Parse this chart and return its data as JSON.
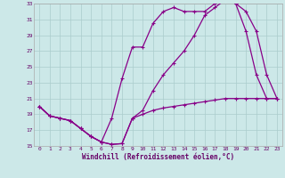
{
  "bg_color": "#cce8e8",
  "line_color": "#880088",
  "grid_color": "#aacccc",
  "xlabel": "Windchill (Refroidissement éolien,°C)",
  "xlim": [
    -0.5,
    23.5
  ],
  "ylim": [
    15,
    33
  ],
  "yticks": [
    15,
    17,
    19,
    21,
    23,
    25,
    27,
    29,
    31,
    33
  ],
  "xticks": [
    0,
    1,
    2,
    3,
    4,
    5,
    6,
    7,
    8,
    9,
    10,
    11,
    12,
    13,
    14,
    15,
    16,
    17,
    18,
    19,
    20,
    21,
    22,
    23
  ],
  "series1_x": [
    0,
    1,
    2,
    3,
    4,
    5,
    6,
    7,
    8,
    9,
    10,
    11,
    12,
    13,
    14,
    15,
    16,
    17,
    18,
    19,
    20,
    21,
    22,
    23
  ],
  "series1_y": [
    20.0,
    18.8,
    18.5,
    18.2,
    17.2,
    16.2,
    15.5,
    15.2,
    15.3,
    18.5,
    19.0,
    19.5,
    19.8,
    20.0,
    20.2,
    20.4,
    20.6,
    20.8,
    21.0,
    21.0,
    21.0,
    21.0,
    21.0,
    21.0
  ],
  "series2_x": [
    0,
    1,
    2,
    3,
    4,
    5,
    6,
    7,
    8,
    9,
    10,
    11,
    12,
    13,
    14,
    15,
    16,
    17,
    18,
    19,
    20,
    21,
    22,
    23
  ],
  "series2_y": [
    20.0,
    18.8,
    18.5,
    18.2,
    17.2,
    16.2,
    15.5,
    15.2,
    15.3,
    18.5,
    19.5,
    22.0,
    24.0,
    25.5,
    27.0,
    29.0,
    31.5,
    32.5,
    33.5,
    33.0,
    32.0,
    29.5,
    24.0,
    21.0
  ],
  "series3_x": [
    0,
    1,
    2,
    3,
    4,
    5,
    6,
    7,
    8,
    9,
    10,
    11,
    12,
    13,
    14,
    15,
    16,
    17,
    18,
    19,
    20,
    21,
    22,
    23
  ],
  "series3_y": [
    20.0,
    18.8,
    18.5,
    18.2,
    17.2,
    16.2,
    15.5,
    18.5,
    23.5,
    27.5,
    27.5,
    30.5,
    32.0,
    32.5,
    32.0,
    32.0,
    32.0,
    33.0,
    33.5,
    33.0,
    29.5,
    24.0,
    21.0,
    21.0
  ]
}
